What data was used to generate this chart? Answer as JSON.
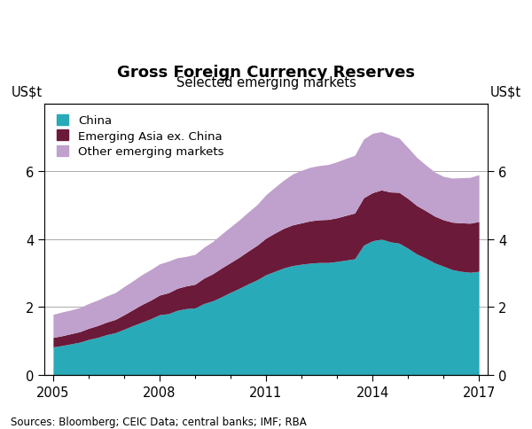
{
  "title": "Gross Foreign Currency Reserves",
  "subtitle": "Selected emerging markets",
  "ylabel_left": "US$t",
  "ylabel_right": "US$t",
  "source": "Sources: Bloomberg; CEIC Data; central banks; IMF; RBA",
  "ylim": [
    0,
    8
  ],
  "yticks": [
    0,
    2,
    4,
    6
  ],
  "color_china": "#29aab8",
  "color_emerging_asia": "#6b1a3a",
  "color_other": "#c0a0cc",
  "legend_labels": [
    "China",
    "Emerging Asia ex. China",
    "Other emerging markets"
  ],
  "years": [
    2005.0,
    2005.25,
    2005.5,
    2005.75,
    2006.0,
    2006.25,
    2006.5,
    2006.75,
    2007.0,
    2007.25,
    2007.5,
    2007.75,
    2008.0,
    2008.25,
    2008.5,
    2008.75,
    2009.0,
    2009.25,
    2009.5,
    2009.75,
    2010.0,
    2010.25,
    2010.5,
    2010.75,
    2011.0,
    2011.25,
    2011.5,
    2011.75,
    2012.0,
    2012.25,
    2012.5,
    2012.75,
    2013.0,
    2013.25,
    2013.5,
    2013.75,
    2014.0,
    2014.25,
    2014.5,
    2014.75,
    2015.0,
    2015.25,
    2015.5,
    2015.75,
    2016.0,
    2016.25,
    2016.5,
    2016.75,
    2017.0
  ],
  "china": [
    0.82,
    0.86,
    0.91,
    0.96,
    1.04,
    1.1,
    1.18,
    1.24,
    1.34,
    1.45,
    1.55,
    1.65,
    1.77,
    1.8,
    1.9,
    1.95,
    1.97,
    2.1,
    2.18,
    2.3,
    2.43,
    2.55,
    2.68,
    2.8,
    2.95,
    3.05,
    3.15,
    3.22,
    3.26,
    3.29,
    3.31,
    3.31,
    3.34,
    3.38,
    3.42,
    3.82,
    3.95,
    4.0,
    3.92,
    3.88,
    3.73,
    3.56,
    3.44,
    3.3,
    3.2,
    3.1,
    3.05,
    3.02,
    3.05
  ],
  "emerging_asia": [
    0.28,
    0.29,
    0.3,
    0.31,
    0.33,
    0.35,
    0.37,
    0.39,
    0.43,
    0.47,
    0.52,
    0.55,
    0.58,
    0.62,
    0.65,
    0.67,
    0.7,
    0.75,
    0.8,
    0.85,
    0.88,
    0.92,
    0.97,
    1.02,
    1.08,
    1.13,
    1.17,
    1.2,
    1.22,
    1.25,
    1.26,
    1.27,
    1.29,
    1.32,
    1.35,
    1.4,
    1.42,
    1.45,
    1.47,
    1.5,
    1.47,
    1.43,
    1.4,
    1.38,
    1.37,
    1.4,
    1.43,
    1.45,
    1.47
  ],
  "other": [
    0.68,
    0.7,
    0.7,
    0.71,
    0.73,
    0.75,
    0.77,
    0.79,
    0.83,
    0.85,
    0.88,
    0.9,
    0.92,
    0.93,
    0.9,
    0.87,
    0.88,
    0.91,
    0.95,
    1.0,
    1.05,
    1.1,
    1.15,
    1.2,
    1.28,
    1.35,
    1.42,
    1.5,
    1.55,
    1.58,
    1.6,
    1.62,
    1.65,
    1.68,
    1.7,
    1.73,
    1.75,
    1.72,
    1.68,
    1.6,
    1.5,
    1.42,
    1.35,
    1.3,
    1.28,
    1.3,
    1.33,
    1.35,
    1.38
  ]
}
